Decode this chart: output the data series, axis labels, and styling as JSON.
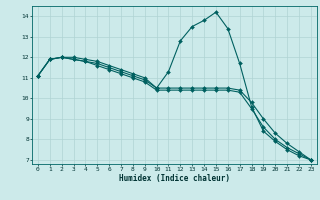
{
  "xlabel": "Humidex (Indice chaleur)",
  "bg_color": "#cceaea",
  "line_color": "#006060",
  "grid_color": "#b0d4d4",
  "xlim": [
    -0.5,
    23.5
  ],
  "ylim": [
    6.8,
    14.5
  ],
  "yticks": [
    7,
    8,
    9,
    10,
    11,
    12,
    13,
    14
  ],
  "xticks": [
    0,
    1,
    2,
    3,
    4,
    5,
    6,
    7,
    8,
    9,
    10,
    11,
    12,
    13,
    14,
    15,
    16,
    17,
    18,
    19,
    20,
    21,
    22,
    23
  ],
  "line1_x": [
    0,
    1,
    2,
    3,
    4,
    5,
    6,
    7,
    8,
    9,
    10,
    11,
    12,
    13,
    14,
    15,
    16,
    17,
    18,
    19,
    20,
    21,
    22,
    23
  ],
  "line1_y": [
    11.1,
    11.9,
    12.0,
    12.0,
    11.9,
    11.8,
    11.6,
    11.4,
    11.2,
    11.0,
    10.5,
    11.3,
    12.8,
    13.5,
    13.8,
    14.2,
    13.4,
    11.7,
    9.6,
    8.4,
    7.9,
    7.5,
    7.2,
    7.0
  ],
  "line2_x": [
    0,
    1,
    2,
    3,
    4,
    5,
    6,
    7,
    8,
    9,
    10,
    11,
    12,
    13,
    14,
    15,
    16,
    17,
    18,
    19,
    20,
    21,
    22,
    23
  ],
  "line2_y": [
    11.1,
    11.9,
    12.0,
    11.9,
    11.8,
    11.7,
    11.5,
    11.3,
    11.1,
    10.9,
    10.5,
    10.5,
    10.5,
    10.5,
    10.5,
    10.5,
    10.5,
    10.4,
    9.8,
    9.0,
    8.3,
    7.8,
    7.4,
    7.0
  ],
  "line3_x": [
    0,
    1,
    2,
    3,
    4,
    5,
    6,
    7,
    8,
    9,
    10,
    11,
    12,
    13,
    14,
    15,
    16,
    17,
    18,
    19,
    20,
    21,
    22,
    23
  ],
  "line3_y": [
    11.1,
    11.9,
    12.0,
    11.9,
    11.8,
    11.6,
    11.4,
    11.2,
    11.0,
    10.8,
    10.4,
    10.4,
    10.4,
    10.4,
    10.4,
    10.4,
    10.4,
    10.3,
    9.5,
    8.6,
    8.0,
    7.6,
    7.3,
    7.0
  ]
}
